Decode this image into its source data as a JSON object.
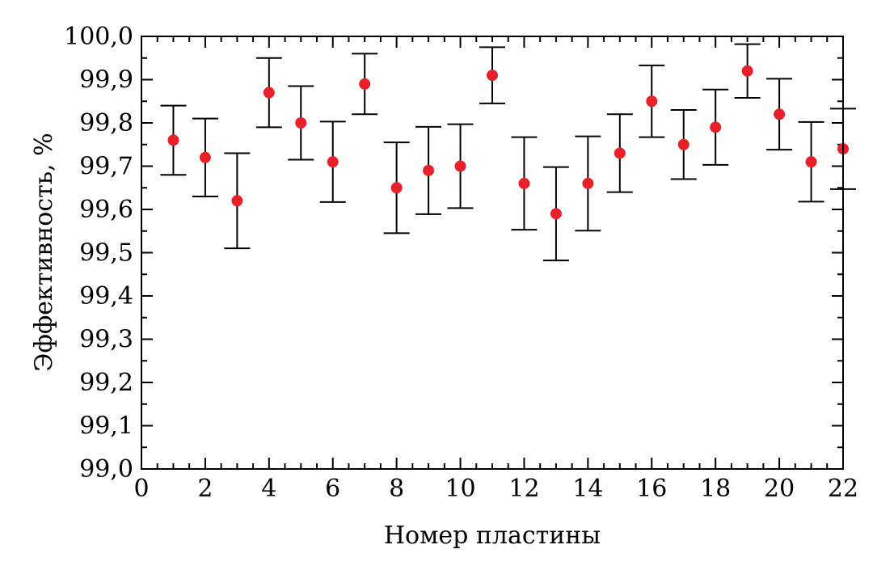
{
  "chart_data": {
    "type": "scatter",
    "title": "",
    "xlabel": "Номер пластины",
    "ylabel": "Эффективность, %",
    "xlim": [
      0,
      22
    ],
    "ylim": [
      99.0,
      100.0
    ],
    "x_ticks": [
      "0",
      "2",
      "4",
      "6",
      "8",
      "10",
      "12",
      "14",
      "16",
      "18",
      "20",
      "22"
    ],
    "y_ticks": [
      "99,0",
      "99,1",
      "99,2",
      "99,3",
      "99,4",
      "99,5",
      "99,6",
      "99,7",
      "99,8",
      "99,9",
      "100,0"
    ],
    "grid": false,
    "legend": "none",
    "marker_color": "#e8202a",
    "errorbar_color": "#000000",
    "points": [
      {
        "x": 1,
        "y": 99.76,
        "lo": 99.68,
        "hi": 99.84
      },
      {
        "x": 2,
        "y": 99.72,
        "lo": 99.63,
        "hi": 99.81
      },
      {
        "x": 3,
        "y": 99.62,
        "lo": 99.51,
        "hi": 99.73
      },
      {
        "x": 4,
        "y": 99.87,
        "lo": 99.79,
        "hi": 99.95
      },
      {
        "x": 5,
        "y": 99.8,
        "lo": 99.715,
        "hi": 99.885
      },
      {
        "x": 6,
        "y": 99.71,
        "lo": 99.617,
        "hi": 99.803
      },
      {
        "x": 7,
        "y": 99.89,
        "lo": 99.82,
        "hi": 99.96
      },
      {
        "x": 8,
        "y": 99.65,
        "lo": 99.545,
        "hi": 99.755
      },
      {
        "x": 9,
        "y": 99.69,
        "lo": 99.589,
        "hi": 99.791
      },
      {
        "x": 10,
        "y": 99.7,
        "lo": 99.603,
        "hi": 99.797
      },
      {
        "x": 11,
        "y": 99.91,
        "lo": 99.845,
        "hi": 99.975
      },
      {
        "x": 12,
        "y": 99.66,
        "lo": 99.553,
        "hi": 99.767
      },
      {
        "x": 13,
        "y": 99.59,
        "lo": 99.482,
        "hi": 99.698
      },
      {
        "x": 14,
        "y": 99.66,
        "lo": 99.551,
        "hi": 99.769
      },
      {
        "x": 15,
        "y": 99.73,
        "lo": 99.64,
        "hi": 99.82
      },
      {
        "x": 16,
        "y": 99.85,
        "lo": 99.767,
        "hi": 99.933
      },
      {
        "x": 17,
        "y": 99.75,
        "lo": 99.67,
        "hi": 99.83
      },
      {
        "x": 18,
        "y": 99.79,
        "lo": 99.703,
        "hi": 99.877
      },
      {
        "x": 19,
        "y": 99.92,
        "lo": 99.858,
        "hi": 99.982
      },
      {
        "x": 20,
        "y": 99.82,
        "lo": 99.738,
        "hi": 99.902
      },
      {
        "x": 21,
        "y": 99.71,
        "lo": 99.618,
        "hi": 99.802
      },
      {
        "x": 22,
        "y": 99.74,
        "lo": 99.647,
        "hi": 99.833
      }
    ]
  }
}
